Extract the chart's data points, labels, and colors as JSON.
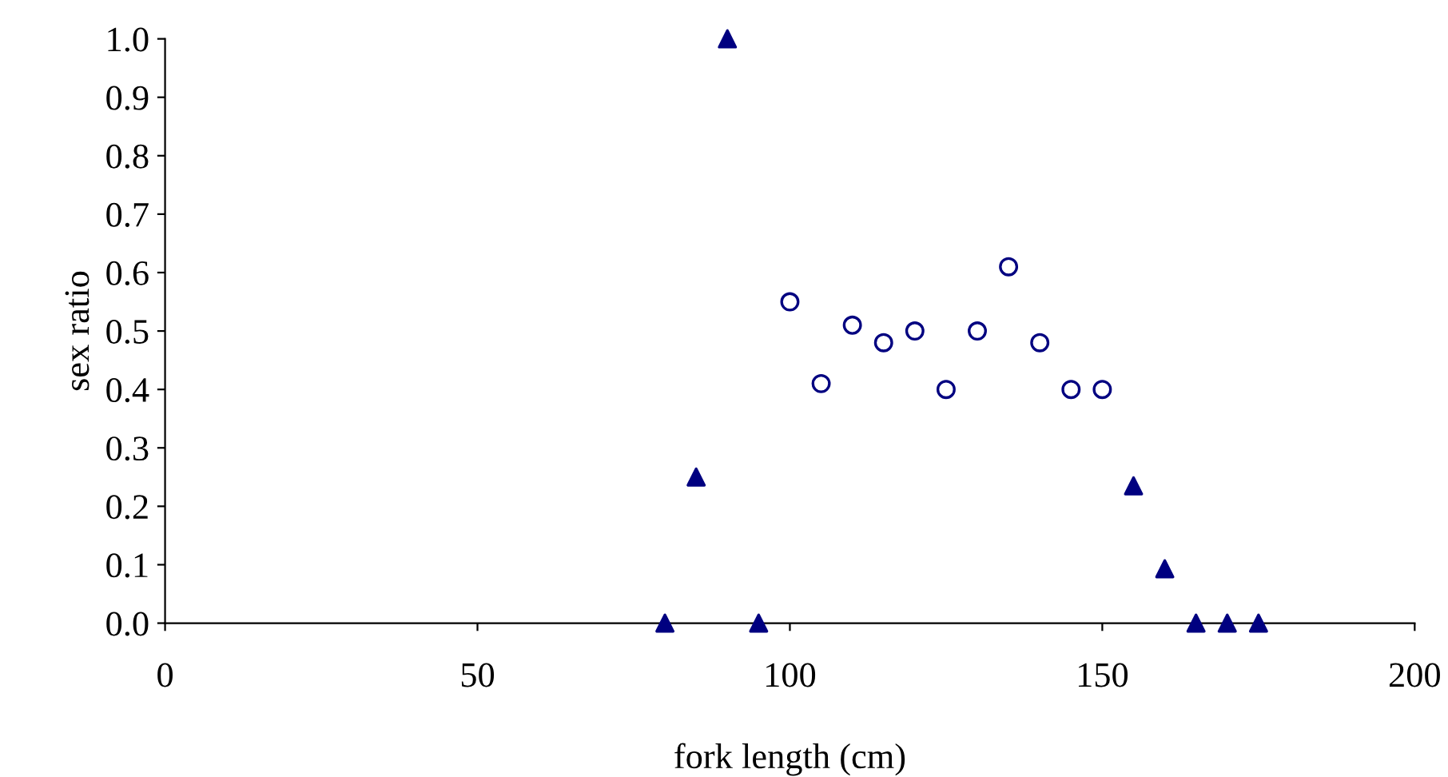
{
  "chart_data": {
    "type": "scatter",
    "xlabel": "fork length (cm)",
    "ylabel": "sex ratio",
    "xlim": [
      0,
      200
    ],
    "xticks": [
      0,
      50,
      100,
      150,
      200
    ],
    "ylim": [
      0,
      1
    ],
    "yticks": [
      {
        "value": 0,
        "label": "0.0"
      },
      0.1,
      0.2,
      0.3,
      0.4,
      0.5,
      0.6,
      0.7,
      0.8,
      0.9,
      {
        "value": 1,
        "label": "1.0"
      }
    ],
    "grid": false,
    "legend": false,
    "series": [
      {
        "color": "#000080",
        "marker": "triangle",
        "x": [
          80,
          85,
          90,
          95,
          155,
          160,
          165,
          170,
          175
        ],
        "values": [
          0,
          0.25,
          1.0,
          0,
          0.235,
          0.093,
          0,
          0,
          0
        ]
      },
      {
        "color": "#000080",
        "marker": "circle",
        "x": [
          100,
          105,
          110,
          115,
          120,
          125,
          130,
          135,
          140,
          145,
          150
        ],
        "values": [
          0.55,
          0.41,
          0.51,
          0.48,
          0.5,
          0.4,
          0.5,
          0.61,
          0.48,
          0.4,
          0.4
        ]
      }
    ]
  }
}
